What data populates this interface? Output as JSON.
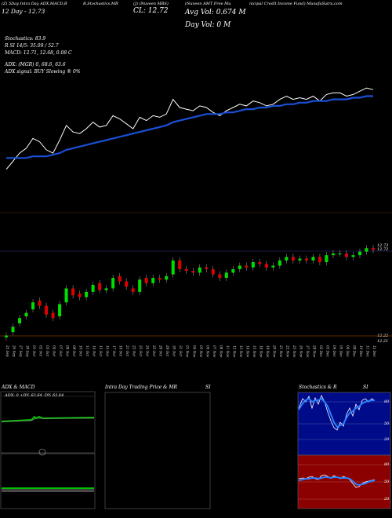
{
  "header": {
    "left_line1": "(Z) 5Day Intra Day ADX,MACD,B",
    "left_line2": "12  Day   - 12.73",
    "mid_line1": "B,Stochastics,MR",
    "cl_line1": "(J) (Nuveen MBS)",
    "cl_line2": "CL: 12.72",
    "right_line1": "(Nuveen AMT Free Mu",
    "right_line1b": "nicipal Credit Income Fund) MunafaSutra.com",
    "avg_vol": "Avg Vol: 0.674  M",
    "day_vol": "Day Vol: 0   M"
  },
  "indicators": {
    "stoch": "Stochastics: 83.9",
    "si": "R          SI 14/5: 35.09 / 52.7",
    "macd": "MACD: 12.71,  12.68, 0.08  C",
    "adx": "ADX:                    (MGR) 0, 68.6,  63.6",
    "adx_signal": "ADX  signal:                          BUY Slowing ® 0%"
  },
  "price_axis": {
    "top_label": "12.73",
    "top_label2": "12.72",
    "bottom_label": "12.22",
    "bottom_label2": "12.21"
  },
  "x_dates": [
    "25 Sep",
    "26 Sep",
    "27 Sep",
    "30 Sep",
    "01 Oct",
    "02 Oct",
    "03 Oct",
    "04 Oct",
    "07 Oct",
    "08 Oct",
    "09 Oct",
    "10 Oct",
    "11 Oct",
    "14 Oct",
    "15 Oct",
    "16 Oct",
    "17 Oct",
    "18 Oct",
    "21 Oct",
    "22 Oct",
    "23 Oct",
    "24 Oct",
    "25 Oct",
    "28 Oct",
    "29 Oct",
    "30 Oct",
    "31 Oct",
    "01 Nov",
    "04 Nov",
    "05 Nov",
    "06 Nov",
    "07 Nov",
    "08 Nov",
    "11 Nov",
    "12 Nov",
    "13 Nov",
    "14 Nov",
    "15 Nov",
    "18 Nov",
    "19 Nov",
    "20 Nov",
    "21 Nov",
    "22 Nov",
    "25 Nov",
    "26 Nov",
    "27 Nov",
    "29 Nov",
    "02 Dec",
    "03 Dec",
    "04 Dec",
    "05 Dec",
    "06 Dec",
    "09 Dec",
    "10 Dec",
    "11 Dec",
    "12 Dec"
  ],
  "bottom_panels": {
    "adx_title": "ADX  & MACD",
    "adx_values": "ADX: 0   +DY: 63.64   -DY: 63.64",
    "intraday_title": "Intra  Day Trading Price  & MR",
    "intraday_si": "SI",
    "stoch_title": "Stochastics & R",
    "stoch_si": "SI",
    "stoch_ticks": [
      "80",
      "50",
      "20"
    ],
    "rsi_ticks": [
      "80",
      "50",
      "20"
    ]
  },
  "colors": {
    "price_line": "#ffffff",
    "ma_line": "#1a4fd6",
    "up": "#00e000",
    "down": "#e00000",
    "rsi_bg": "#8b0000",
    "stoch_fast": "#2a7fff"
  },
  "chart_data": {
    "type": "line",
    "title": "Nuveen AMT Free Municipal Credit Income Fund",
    "x": [
      "25 Sep",
      "26 Sep",
      "27 Sep",
      "30 Sep",
      "01 Oct",
      "02 Oct",
      "03 Oct",
      "04 Oct",
      "07 Oct",
      "08 Oct",
      "09 Oct",
      "10 Oct",
      "11 Oct",
      "14 Oct",
      "15 Oct",
      "16 Oct",
      "17 Oct",
      "18 Oct",
      "21 Oct",
      "22 Oct",
      "23 Oct",
      "24 Oct",
      "25 Oct",
      "28 Oct",
      "29 Oct",
      "30 Oct",
      "31 Oct",
      "01 Nov",
      "04 Nov",
      "05 Nov",
      "06 Nov",
      "07 Nov",
      "08 Nov",
      "11 Nov",
      "12 Nov",
      "13 Nov",
      "14 Nov",
      "15 Nov",
      "18 Nov",
      "19 Nov",
      "20 Nov",
      "21 Nov",
      "22 Nov",
      "25 Nov",
      "26 Nov",
      "27 Nov",
      "29 Nov",
      "02 Dec",
      "03 Dec",
      "04 Dec",
      "05 Dec",
      "06 Dec",
      "09 Dec",
      "10 Dec",
      "11 Dec",
      "12 Dec"
    ],
    "series": [
      {
        "name": "close",
        "values": [
          12.23,
          12.28,
          12.33,
          12.36,
          12.42,
          12.4,
          12.35,
          12.33,
          12.41,
          12.5,
          12.46,
          12.45,
          12.48,
          12.52,
          12.49,
          12.5,
          12.56,
          12.54,
          12.51,
          12.48,
          12.55,
          12.53,
          12.56,
          12.55,
          12.57,
          12.66,
          12.61,
          12.6,
          12.59,
          12.62,
          12.61,
          12.58,
          12.56,
          12.59,
          12.61,
          12.63,
          12.62,
          12.65,
          12.64,
          12.62,
          12.63,
          12.66,
          12.68,
          12.66,
          12.67,
          12.66,
          12.68,
          12.65,
          12.69,
          12.7,
          12.7,
          12.68,
          12.69,
          12.71,
          12.73,
          12.72
        ]
      },
      {
        "name": "ma",
        "values": [
          12.3,
          12.3,
          12.3,
          12.3,
          12.31,
          12.31,
          12.31,
          12.32,
          12.33,
          12.35,
          12.36,
          12.37,
          12.38,
          12.39,
          12.4,
          12.41,
          12.42,
          12.43,
          12.44,
          12.45,
          12.46,
          12.47,
          12.48,
          12.49,
          12.5,
          12.52,
          12.53,
          12.54,
          12.55,
          12.56,
          12.57,
          12.57,
          12.57,
          12.58,
          12.58,
          12.59,
          12.6,
          12.6,
          12.61,
          12.61,
          12.62,
          12.62,
          12.63,
          12.63,
          12.64,
          12.64,
          12.65,
          12.65,
          12.65,
          12.66,
          12.66,
          12.66,
          12.67,
          12.67,
          12.68,
          12.68
        ]
      }
    ],
    "candles": {
      "open": [
        12.22,
        12.25,
        12.3,
        12.34,
        12.38,
        12.43,
        12.4,
        12.36,
        12.34,
        12.42,
        12.5,
        12.47,
        12.45,
        12.48,
        12.53,
        12.49,
        12.5,
        12.57,
        12.54,
        12.5,
        12.48,
        12.56,
        12.53,
        12.56,
        12.55,
        12.58,
        12.66,
        12.61,
        12.6,
        12.59,
        12.62,
        12.61,
        12.58,
        12.56,
        12.59,
        12.61,
        12.63,
        12.62,
        12.65,
        12.64,
        12.62,
        12.63,
        12.66,
        12.68,
        12.66,
        12.67,
        12.66,
        12.68,
        12.65,
        12.69,
        12.7,
        12.7,
        12.68,
        12.69,
        12.71,
        12.73
      ],
      "close": [
        12.23,
        12.28,
        12.33,
        12.36,
        12.42,
        12.4,
        12.35,
        12.33,
        12.41,
        12.5,
        12.46,
        12.45,
        12.48,
        12.52,
        12.49,
        12.5,
        12.56,
        12.54,
        12.51,
        12.48,
        12.55,
        12.53,
        12.56,
        12.55,
        12.57,
        12.66,
        12.61,
        12.6,
        12.59,
        12.62,
        12.61,
        12.58,
        12.56,
        12.59,
        12.61,
        12.63,
        12.62,
        12.65,
        12.64,
        12.62,
        12.63,
        12.66,
        12.68,
        12.66,
        12.67,
        12.66,
        12.68,
        12.65,
        12.69,
        12.7,
        12.7,
        12.68,
        12.69,
        12.71,
        12.73,
        12.72
      ]
    },
    "ylim": [
      12.21,
      12.74
    ]
  }
}
